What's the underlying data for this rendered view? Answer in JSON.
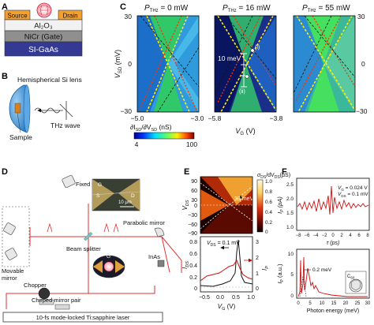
{
  "panels": {
    "A": {
      "label": "A",
      "source": "Source",
      "drain": "Drain",
      "oxide": "Al₂O₃",
      "gate": "NiCr (Gate)",
      "substrate": "SI-GaAs",
      "colors": {
        "electrode": "#f4a030",
        "oxide": "#f2f2f2",
        "gate": "#8f8f8f",
        "substrate": "#343a92"
      }
    },
    "B": {
      "label": "B",
      "lens": "Hemispherical Si lens",
      "wave": "THz wave",
      "sample": "Sample",
      "colors": {
        "lens": "#3a8fd6"
      }
    },
    "C": {
      "label": "C",
      "maps": [
        {
          "title": "P",
          "sub": "THz",
          "eq": " = 0 mW",
          "x_ticks": [
            "−5.0",
            "−3.0"
          ]
        },
        {
          "title": "P",
          "sub": "THz",
          "eq": " = 16 mW",
          "x_ticks": [
            "−5.8",
            "−3.8"
          ]
        },
        {
          "title": "P",
          "sub": "THz",
          "eq": " = 55 mW",
          "x_ticks": []
        }
      ],
      "y_label": "V",
      "y_sub": "SD",
      "y_unit": " (mV)",
      "y_ticks": [
        "30",
        "0",
        "−30"
      ],
      "y_ticks_right": [
        "30",
        "0",
        "−30"
      ],
      "x_label": "V",
      "x_sub": "G",
      "x_unit": " (V)",
      "colorbar_label": "∂I",
      "colorbar_label2": "/∂V",
      "colorbar_unit": " (nS)",
      "colorbar_min": "4",
      "colorbar_max": "100",
      "annot_10mev": "10 meV",
      "annot_i": "(i)",
      "annot_ii": "(ii)"
    },
    "D": {
      "label": "D",
      "fixed_mirror": "Fixed mirror",
      "movable_mirror": "Movable\nmirror",
      "beam_splitter": "Beam splitter",
      "parabolic_mirror": "Parabolic mirror",
      "chopper": "Chopper",
      "inas": "InAs",
      "chirped": "Chirped mirror pair",
      "laser": "10-fs mode-locked Ti:sapphire laser",
      "tau": "τ",
      "scale_bar": "10 μm",
      "inset_labels": {
        "s": "S",
        "d": "D",
        "g": "G"
      }
    },
    "E": {
      "label": "E",
      "colorbar_label": "σ",
      "cb_ticks": [
        "1.0",
        "0.8",
        "0.6",
        "0.4",
        "0.2",
        "0"
      ],
      "cb_unit": "(μS)",
      "top_y_label": "V",
      "top_y_ticks": [
        "90",
        "60",
        "30",
        "0",
        "−30",
        "−60",
        "−90"
      ],
      "annot_33": "33 meV",
      "vds_label": "V",
      "vds_eq": " = 0.1 mV",
      "bot_y_label": "I",
      "bot_y_ticks": [
        "0.8",
        "0.6",
        "0.4",
        "0.2",
        "0"
      ],
      "bot_y2_ticks": [
        "3",
        "2",
        "1",
        "0"
      ],
      "x_ticks": [
        "−0.5",
        "0.0",
        "0.5",
        "1.0"
      ],
      "x_label": "V",
      "x_unit": " (V)"
    },
    "F": {
      "label": "F",
      "top_y_label": "I",
      "top_y_ticks": [
        "2.5",
        "2.0",
        "1.5",
        "1.0"
      ],
      "top_x_ticks": [
        "−8",
        "−6",
        "−4",
        "−2",
        "0",
        "2",
        "4",
        "6",
        "8"
      ],
      "top_x_label": "τ (ps)",
      "vg_text": "V",
      "vg_eq": " = 0.024 V",
      "vds_text": "V",
      "vds_eq": " = 0.1 mV",
      "bot_y_label": "I",
      "bot_y_unit": "(a.u.)",
      "bot_y_ticks": [
        "10",
        "5",
        "0"
      ],
      "bot_x_ticks": [
        "0",
        "5",
        "10",
        "15",
        "20",
        "25",
        "30"
      ],
      "bot_x_label": "Photon energy (meV)",
      "annot_02": "0.2 meV",
      "c60": "C",
      "c60_sub": "60",
      "colors": {
        "trace": "#d01010"
      }
    }
  }
}
